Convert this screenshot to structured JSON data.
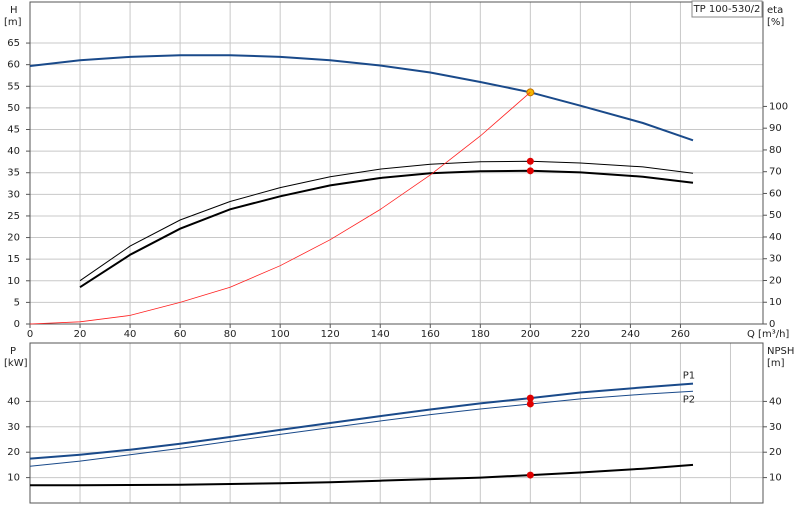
{
  "chart_data": [
    {
      "type": "line",
      "title": "TP 100-530/2",
      "ylabel": "H",
      "yunit": "[m]",
      "y2label": "eta",
      "y2unit": "[%]",
      "xlabel": "Q [m³/h]",
      "x": [
        0,
        20,
        40,
        60,
        80,
        100,
        120,
        140,
        160,
        180,
        200,
        220,
        245,
        265
      ],
      "xlim": [
        0,
        293
      ],
      "xticks": [
        0,
        20,
        40,
        60,
        80,
        100,
        120,
        140,
        160,
        180,
        200,
        220,
        240,
        260
      ],
      "ylim": [
        0,
        74.5
      ],
      "yticks": [
        0,
        5,
        10,
        15,
        20,
        25,
        30,
        35,
        40,
        45,
        50,
        55,
        60,
        65
      ],
      "y2lim": [
        0,
        148
      ],
      "y2ticks": [
        0,
        10,
        20,
        30,
        40,
        50,
        60,
        70,
        80,
        90,
        100
      ],
      "grid": true,
      "duty_x": 200,
      "series": [
        {
          "color": "#1a4a8a",
          "width": 2,
          "marker_color": "#f5b800",
          "values": [
            59.7,
            61,
            61.8,
            62.2,
            62.2,
            61.8,
            61,
            59.8,
            58.2,
            56,
            53.6,
            50.5,
            46.5,
            42.5
          ]
        },
        {
          "color": "#000000",
          "width": 1,
          "axis": "y2",
          "marker_color": "#e00000",
          "values": [
            null,
            19.9,
            35.8,
            47.8,
            56.3,
            62.7,
            67.7,
            71.2,
            73.4,
            74.6,
            74.8,
            74.0,
            72.2,
            69.3
          ]
        },
        {
          "color": "#000000",
          "width": 2,
          "axis": "y2",
          "marker_color": "#e00000",
          "values": [
            null,
            16.9,
            31.8,
            43.8,
            52.7,
            58.7,
            63.7,
            67.1,
            69.3,
            70.2,
            70.4,
            69.7,
            67.7,
            64.9
          ]
        },
        {
          "color": "#ff2020",
          "width": 0.8,
          "values": [
            0,
            0.5,
            2,
            5,
            8.5,
            13.5,
            19.5,
            26.5,
            34.5,
            43.5,
            53.6,
            null,
            null,
            null
          ]
        }
      ]
    },
    {
      "type": "line",
      "ylabel": "P",
      "yunit": "[kW]",
      "y2label": "NPSH",
      "y2unit": "[m]",
      "x": [
        0,
        20,
        40,
        60,
        80,
        100,
        120,
        140,
        160,
        180,
        200,
        220,
        245,
        265
      ],
      "xlim": [
        0,
        293
      ],
      "xticks": [
        0,
        20,
        40,
        60,
        80,
        100,
        120,
        140,
        160,
        180,
        200,
        220,
        240,
        260,
        280
      ],
      "xtick_labels": false,
      "ylim": [
        0,
        63
      ],
      "yticks": [
        10,
        20,
        30,
        40
      ],
      "y2lim": [
        0,
        63
      ],
      "y2ticks": [
        10,
        20,
        30,
        40
      ],
      "grid": true,
      "duty_x": 200,
      "series": [
        {
          "name": "P1",
          "color": "#1a4a8a",
          "width": 2,
          "marker_color": "#e00000",
          "values": [
            17.5,
            19,
            21,
            23.3,
            26,
            28.8,
            31.5,
            34.2,
            36.8,
            39.2,
            41.3,
            43.5,
            45.5,
            47
          ]
        },
        {
          "name": "P2",
          "color": "#1a4a8a",
          "width": 1,
          "marker_color": "#e00000",
          "values": [
            14.5,
            16.5,
            19,
            21.5,
            24.3,
            27,
            29.7,
            32.3,
            34.8,
            37,
            39,
            41,
            42.8,
            44
          ]
        },
        {
          "color": "#000000",
          "width": 2,
          "axis": "y2",
          "marker_color": "#e00000",
          "values": [
            7,
            7,
            7.1,
            7.2,
            7.5,
            7.8,
            8.2,
            8.8,
            9.4,
            10,
            11,
            12,
            13.5,
            15
          ]
        }
      ]
    }
  ]
}
